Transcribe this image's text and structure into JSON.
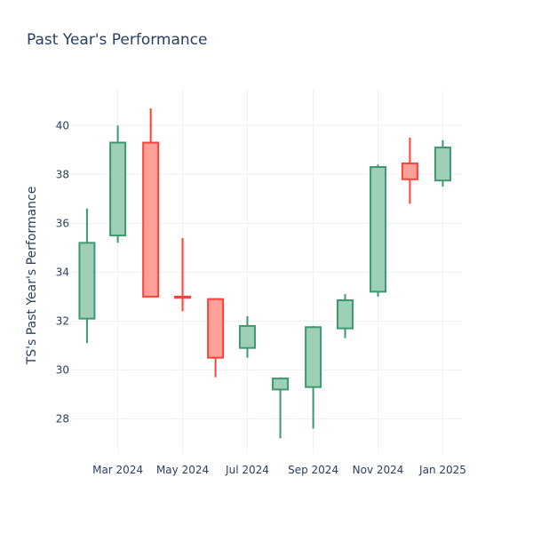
{
  "chart_data": {
    "type": "candlestick",
    "title": "Past Year's Performance",
    "xlabel": "",
    "ylabel": "TS's Past Year's Performance",
    "ylim": [
      26.6,
      41.5
    ],
    "yticks": [
      28,
      30,
      32,
      34,
      36,
      38,
      40
    ],
    "xlim": [
      "2024-01-17",
      "2025-01-19"
    ],
    "xticks": [
      {
        "date": "2024-03-01",
        "label": "Mar 2024"
      },
      {
        "date": "2024-05-01",
        "label": "May 2024"
      },
      {
        "date": "2024-07-01",
        "label": "Jul 2024"
      },
      {
        "date": "2024-09-01",
        "label": "Sep 2024"
      },
      {
        "date": "2024-11-01",
        "label": "Nov 2024"
      },
      {
        "date": "2025-01-01",
        "label": "Jan 2025"
      }
    ],
    "grid": true,
    "increasing_color": "#3d9970",
    "increasing_fill": "#9ecfb7",
    "decreasing_color": "#ff4136",
    "decreasing_fill": "#ffa09b",
    "candles": [
      {
        "date": "2024-02-01",
        "open": 32.1,
        "high": 36.6,
        "low": 31.1,
        "close": 35.2
      },
      {
        "date": "2024-03-01",
        "open": 35.5,
        "high": 40.0,
        "low": 35.2,
        "close": 39.3
      },
      {
        "date": "2024-04-01",
        "open": 39.3,
        "high": 40.7,
        "low": 33.0,
        "close": 33.0
      },
      {
        "date": "2024-05-01",
        "open": 33.0,
        "high": 35.4,
        "low": 32.4,
        "close": 32.95
      },
      {
        "date": "2024-06-01",
        "open": 32.9,
        "high": 32.9,
        "low": 29.7,
        "close": 30.5
      },
      {
        "date": "2024-07-01",
        "open": 30.9,
        "high": 32.2,
        "low": 30.5,
        "close": 31.8
      },
      {
        "date": "2024-08-01",
        "open": 29.2,
        "high": 29.7,
        "low": 27.2,
        "close": 29.65
      },
      {
        "date": "2024-09-01",
        "open": 29.3,
        "high": 31.8,
        "low": 27.6,
        "close": 31.75
      },
      {
        "date": "2024-10-01",
        "open": 31.7,
        "high": 33.1,
        "low": 31.3,
        "close": 32.85
      },
      {
        "date": "2024-11-01",
        "open": 33.2,
        "high": 38.4,
        "low": 33.0,
        "close": 38.3
      },
      {
        "date": "2024-12-01",
        "open": 38.45,
        "high": 39.5,
        "low": 36.8,
        "close": 37.8
      },
      {
        "date": "2025-01-01",
        "open": 37.75,
        "high": 39.4,
        "low": 37.5,
        "close": 39.1
      }
    ]
  }
}
